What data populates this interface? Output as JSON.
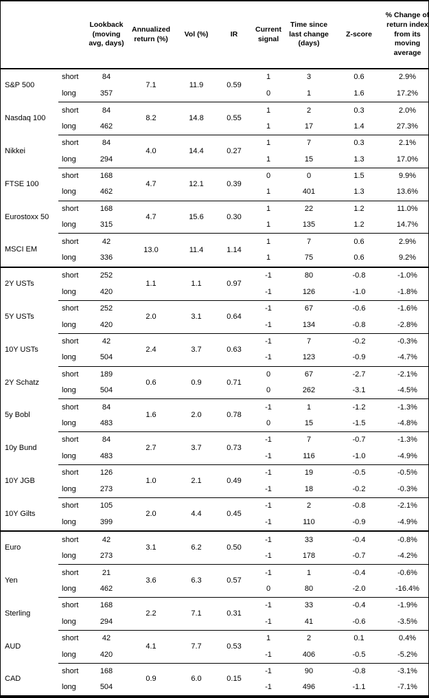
{
  "table": {
    "headers": {
      "instrument": "",
      "leg": "",
      "lookback": "Lookback\n(moving\navg, days)",
      "annualized_return": "Annualized\nreturn (%)",
      "vol": "Vol (%)",
      "ir": "IR",
      "current_signal": "Current\nsignal",
      "time_since": "Time since\nlast change\n(days)",
      "zscore": "Z-score",
      "pct_change": "% Change of\nreturn index\nfrom its\nmoving\naverage"
    },
    "groups": [
      {
        "instrument": "S&P 500",
        "section_start": false,
        "annualized_return": "7.1",
        "vol": "11.9",
        "ir": "0.59",
        "rows": [
          {
            "leg": "short",
            "lookback": "84",
            "signal": "1",
            "time": "3",
            "zscore": "0.6",
            "pct": "2.9%"
          },
          {
            "leg": "long",
            "lookback": "357",
            "signal": "0",
            "time": "1",
            "zscore": "1.6",
            "pct": "17.2%"
          }
        ]
      },
      {
        "instrument": "Nasdaq 100",
        "section_start": false,
        "annualized_return": "8.2",
        "vol": "14.8",
        "ir": "0.55",
        "rows": [
          {
            "leg": "short",
            "lookback": "84",
            "signal": "1",
            "time": "2",
            "zscore": "0.3",
            "pct": "2.0%"
          },
          {
            "leg": "long",
            "lookback": "462",
            "signal": "1",
            "time": "17",
            "zscore": "1.4",
            "pct": "27.3%"
          }
        ]
      },
      {
        "instrument": "Nikkei",
        "section_start": false,
        "annualized_return": "4.0",
        "vol": "14.4",
        "ir": "0.27",
        "rows": [
          {
            "leg": "short",
            "lookback": "84",
            "signal": "1",
            "time": "7",
            "zscore": "0.3",
            "pct": "2.1%"
          },
          {
            "leg": "long",
            "lookback": "294",
            "signal": "1",
            "time": "15",
            "zscore": "1.3",
            "pct": "17.0%"
          }
        ]
      },
      {
        "instrument": "FTSE 100",
        "section_start": false,
        "annualized_return": "4.7",
        "vol": "12.1",
        "ir": "0.39",
        "rows": [
          {
            "leg": "short",
            "lookback": "168",
            "signal": "0",
            "time": "0",
            "zscore": "1.5",
            "pct": "9.9%"
          },
          {
            "leg": "long",
            "lookback": "462",
            "signal": "1",
            "time": "401",
            "zscore": "1.3",
            "pct": "13.6%"
          }
        ]
      },
      {
        "instrument": "Eurostoxx 50",
        "section_start": false,
        "annualized_return": "4.7",
        "vol": "15.6",
        "ir": "0.30",
        "rows": [
          {
            "leg": "short",
            "lookback": "168",
            "signal": "1",
            "time": "22",
            "zscore": "1.2",
            "pct": "11.0%"
          },
          {
            "leg": "long",
            "lookback": "315",
            "signal": "1",
            "time": "135",
            "zscore": "1.2",
            "pct": "14.7%"
          }
        ]
      },
      {
        "instrument": "MSCI EM",
        "section_start": false,
        "annualized_return": "13.0",
        "vol": "11.4",
        "ir": "1.14",
        "rows": [
          {
            "leg": "short",
            "lookback": "42",
            "signal": "1",
            "time": "7",
            "zscore": "0.6",
            "pct": "2.9%"
          },
          {
            "leg": "long",
            "lookback": "336",
            "signal": "1",
            "time": "75",
            "zscore": "0.6",
            "pct": "9.2%"
          }
        ]
      },
      {
        "instrument": "2Y USTs",
        "section_start": true,
        "annualized_return": "1.1",
        "vol": "1.1",
        "ir": "0.97",
        "rows": [
          {
            "leg": "short",
            "lookback": "252",
            "signal": "-1",
            "time": "80",
            "zscore": "-0.8",
            "pct": "-1.0%"
          },
          {
            "leg": "long",
            "lookback": "420",
            "signal": "-1",
            "time": "126",
            "zscore": "-1.0",
            "pct": "-1.8%"
          }
        ]
      },
      {
        "instrument": "5Y USTs",
        "section_start": false,
        "annualized_return": "2.0",
        "vol": "3.1",
        "ir": "0.64",
        "rows": [
          {
            "leg": "short",
            "lookback": "252",
            "signal": "-1",
            "time": "67",
            "zscore": "-0.6",
            "pct": "-1.6%"
          },
          {
            "leg": "long",
            "lookback": "420",
            "signal": "-1",
            "time": "134",
            "zscore": "-0.8",
            "pct": "-2.8%"
          }
        ]
      },
      {
        "instrument": "10Y USTs",
        "section_start": false,
        "annualized_return": "2.4",
        "vol": "3.7",
        "ir": "0.63",
        "rows": [
          {
            "leg": "short",
            "lookback": "42",
            "signal": "-1",
            "time": "7",
            "zscore": "-0.2",
            "pct": "-0.3%"
          },
          {
            "leg": "long",
            "lookback": "504",
            "signal": "-1",
            "time": "123",
            "zscore": "-0.9",
            "pct": "-4.7%"
          }
        ]
      },
      {
        "instrument": "2Y Schatz",
        "section_start": false,
        "annualized_return": "0.6",
        "vol": "0.9",
        "ir": "0.71",
        "rows": [
          {
            "leg": "short",
            "lookback": "189",
            "signal": "0",
            "time": "67",
            "zscore": "-2.7",
            "pct": "-2.1%"
          },
          {
            "leg": "long",
            "lookback": "504",
            "signal": "0",
            "time": "262",
            "zscore": "-3.1",
            "pct": "-4.5%"
          }
        ]
      },
      {
        "instrument": "5y Bobl",
        "section_start": false,
        "annualized_return": "1.6",
        "vol": "2.0",
        "ir": "0.78",
        "rows": [
          {
            "leg": "short",
            "lookback": "84",
            "signal": "-1",
            "time": "1",
            "zscore": "-1.2",
            "pct": "-1.3%"
          },
          {
            "leg": "long",
            "lookback": "483",
            "signal": "0",
            "time": "15",
            "zscore": "-1.5",
            "pct": "-4.8%"
          }
        ]
      },
      {
        "instrument": "10y Bund",
        "section_start": false,
        "annualized_return": "2.7",
        "vol": "3.7",
        "ir": "0.73",
        "rows": [
          {
            "leg": "short",
            "lookback": "84",
            "signal": "-1",
            "time": "7",
            "zscore": "-0.7",
            "pct": "-1.3%"
          },
          {
            "leg": "long",
            "lookback": "483",
            "signal": "-1",
            "time": "116",
            "zscore": "-1.0",
            "pct": "-4.9%"
          }
        ]
      },
      {
        "instrument": "10Y JGB",
        "section_start": false,
        "annualized_return": "1.0",
        "vol": "2.1",
        "ir": "0.49",
        "rows": [
          {
            "leg": "short",
            "lookback": "126",
            "signal": "-1",
            "time": "19",
            "zscore": "-0.5",
            "pct": "-0.5%"
          },
          {
            "leg": "long",
            "lookback": "273",
            "signal": "-1",
            "time": "18",
            "zscore": "-0.2",
            "pct": "-0.3%"
          }
        ]
      },
      {
        "instrument": "10Y Gilts",
        "section_start": false,
        "annualized_return": "2.0",
        "vol": "4.4",
        "ir": "0.45",
        "rows": [
          {
            "leg": "short",
            "lookback": "105",
            "signal": "-1",
            "time": "2",
            "zscore": "-0.8",
            "pct": "-2.1%"
          },
          {
            "leg": "long",
            "lookback": "399",
            "signal": "-1",
            "time": "110",
            "zscore": "-0.9",
            "pct": "-4.9%"
          }
        ]
      },
      {
        "instrument": "Euro",
        "section_start": true,
        "annualized_return": "3.1",
        "vol": "6.2",
        "ir": "0.50",
        "rows": [
          {
            "leg": "short",
            "lookback": "42",
            "signal": "-1",
            "time": "33",
            "zscore": "-0.4",
            "pct": "-0.8%"
          },
          {
            "leg": "long",
            "lookback": "273",
            "signal": "-1",
            "time": "178",
            "zscore": "-0.7",
            "pct": "-4.2%"
          }
        ]
      },
      {
        "instrument": "Yen",
        "section_start": false,
        "annualized_return": "3.6",
        "vol": "6.3",
        "ir": "0.57",
        "rows": [
          {
            "leg": "short",
            "lookback": "21",
            "signal": "-1",
            "time": "1",
            "zscore": "-0.4",
            "pct": "-0.6%"
          },
          {
            "leg": "long",
            "lookback": "462",
            "signal": "0",
            "time": "80",
            "zscore": "-2.0",
            "pct": "-16.4%"
          }
        ]
      },
      {
        "instrument": "Sterling",
        "section_start": false,
        "annualized_return": "2.2",
        "vol": "7.1",
        "ir": "0.31",
        "rows": [
          {
            "leg": "short",
            "lookback": "168",
            "signal": "-1",
            "time": "33",
            "zscore": "-0.4",
            "pct": "-1.9%"
          },
          {
            "leg": "long",
            "lookback": "294",
            "signal": "-1",
            "time": "41",
            "zscore": "-0.6",
            "pct": "-3.5%"
          }
        ]
      },
      {
        "instrument": "AUD",
        "section_start": false,
        "annualized_return": "4.1",
        "vol": "7.7",
        "ir": "0.53",
        "rows": [
          {
            "leg": "short",
            "lookback": "42",
            "signal": "1",
            "time": "2",
            "zscore": "0.1",
            "pct": "0.4%"
          },
          {
            "leg": "long",
            "lookback": "420",
            "signal": "-1",
            "time": "406",
            "zscore": "-0.5",
            "pct": "-5.2%"
          }
        ]
      },
      {
        "instrument": "CAD",
        "section_start": false,
        "annualized_return": "0.9",
        "vol": "6.0",
        "ir": "0.15",
        "rows": [
          {
            "leg": "short",
            "lookback": "168",
            "signal": "-1",
            "time": "90",
            "zscore": "-0.8",
            "pct": "-3.1%"
          },
          {
            "leg": "long",
            "lookback": "504",
            "signal": "-1",
            "time": "496",
            "zscore": "-1.1",
            "pct": "-7.1%"
          }
        ]
      }
    ]
  }
}
